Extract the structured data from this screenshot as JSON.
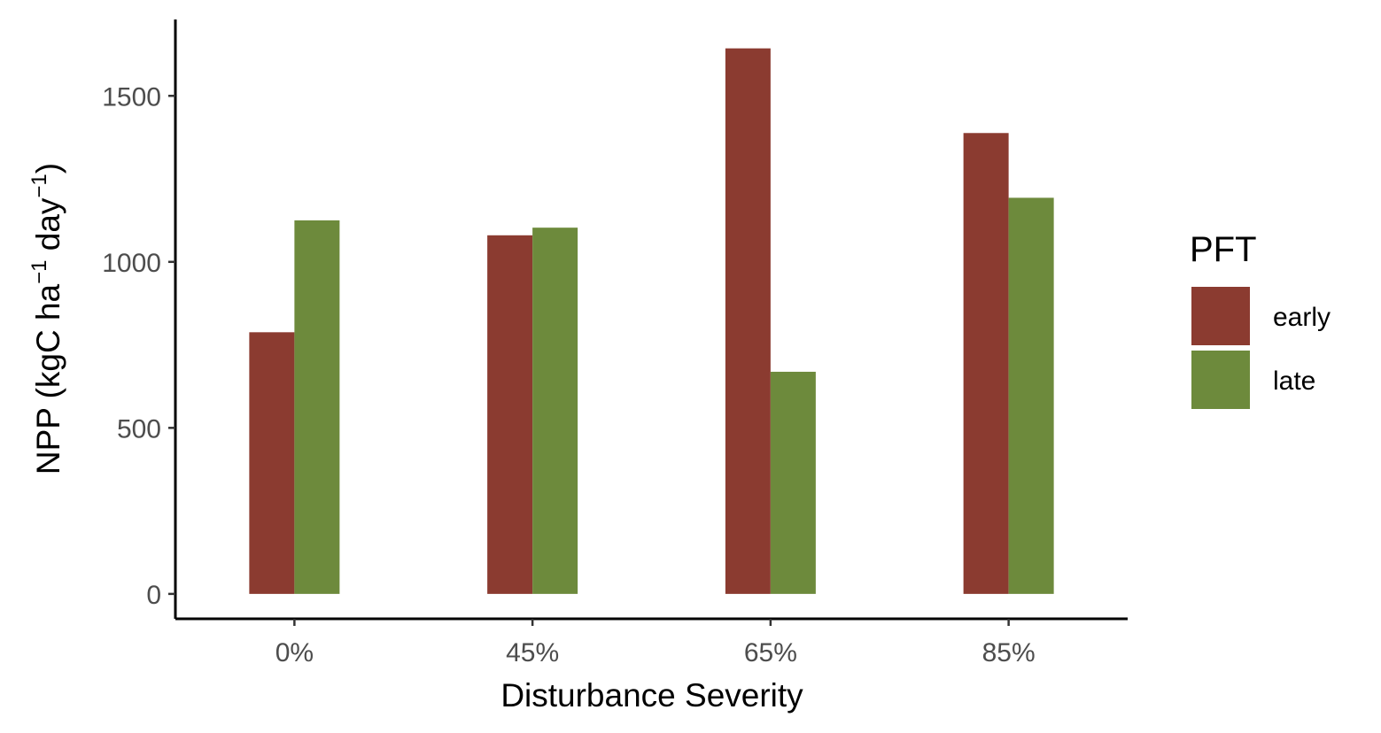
{
  "chart_data": {
    "type": "bar",
    "categories": [
      "0%",
      "45%",
      "65%",
      "85%"
    ],
    "series": [
      {
        "name": "early",
        "color": "#8B3B30",
        "values": [
          788,
          1080,
          1643,
          1388
        ]
      },
      {
        "name": "late",
        "color": "#6D8A3C",
        "values": [
          1125,
          1103,
          669,
          1193
        ]
      }
    ],
    "xlabel": "Disturbance Severity",
    "ylabel": {
      "base": "NPP (kgC ha",
      "sup1": "−1",
      "mid": " day",
      "sup2": "−1",
      "end": ")"
    },
    "yticks": [
      0,
      500,
      1000,
      1500
    ],
    "ylim": [
      -75,
      1730
    ],
    "grid": false,
    "legend": {
      "title": "PFT",
      "position": "right"
    }
  }
}
